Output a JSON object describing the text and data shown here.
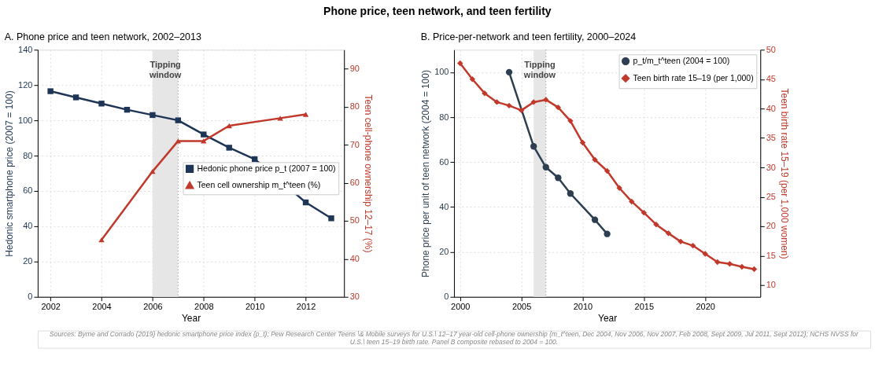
{
  "chart_data": [
    {
      "type": "other",
      "title": "Phone price, teen network, and teen fertility",
      "annotations": [
        "Sources: Byrne and Corrado (2019) hedonic smartphone price index (p_t); Pew Research Center Teens \\& Mobile surveys for U.S.\\ 12–17 year-old cell-phone ownership (m_t^teen, Dec 2004, Nov 2006, Nov 2007, Feb 2008, Sept 2009, Jul 2011, Sept 2012); NCHS NVSS for\nU.S.\\ teen 15–19 birth rate.  Panel B composite rebased to 2004 = 100."
      ]
    },
    {
      "type": "line",
      "title": "A. Phone price and teen network, 2002–2013",
      "xlabel": "Year",
      "ylabel": "Hedonic smartphone price (2007 = 100)",
      "y2label": "Teen cell-phone ownership 12–17 (%)",
      "xlim": [
        2001.5,
        2013.5
      ],
      "xticks": [
        2002,
        2004,
        2006,
        2008,
        2010,
        2012
      ],
      "ylim": [
        0,
        140
      ],
      "yticks": [
        0,
        20,
        40,
        60,
        80,
        100,
        120,
        140
      ],
      "y2lim": [
        30,
        95
      ],
      "y2ticks": [
        30,
        40,
        50,
        60,
        70,
        80,
        90
      ],
      "grid": true,
      "legend": "right",
      "line_style": "solid",
      "bands": [
        {
          "axis": "x",
          "from": 2006,
          "to": 2007,
          "label": "Tipping\nwindow",
          "color": "#e6e6e6"
        }
      ],
      "ref_lines": [
        {
          "axis": "x",
          "value": 2007,
          "color": "#888888",
          "line_style": "dotted"
        }
      ],
      "series": [
        {
          "name": "Hedonic phone price p_t (2007 = 100)",
          "color": "#1f3556",
          "marker": "square",
          "x": [
            2002,
            2003,
            2004,
            2005,
            2006,
            2007,
            2008,
            2009,
            2010,
            2012,
            2013
          ],
          "values": [
            116.5,
            113,
            109.5,
            106,
            103,
            100,
            92,
            84.5,
            78,
            53.5,
            44.5
          ]
        },
        {
          "name": "Teen cell ownership m_t^teen (%)",
          "color": "#c0392b",
          "marker": "triangle",
          "axis": "y2",
          "x": [
            2004,
            2006,
            2007,
            2008,
            2009,
            2011,
            2012
          ],
          "values": [
            45,
            63,
            71,
            71,
            75,
            77,
            78
          ]
        }
      ]
    },
    {
      "type": "line",
      "title": "B. Price-per-network and teen fertility, 2000–2024",
      "xlabel": "Year",
      "ylabel": "Phone price per unit of teen network (2004 = 100)",
      "y2label": "Teen birth rate 15–19 (per 1,000 women)",
      "xlim": [
        1999.5,
        2024.5
      ],
      "xticks": [
        2000,
        2005,
        2010,
        2015,
        2020
      ],
      "ylim": [
        0,
        110
      ],
      "yticks": [
        0,
        20,
        40,
        60,
        80,
        100
      ],
      "y2lim": [
        8,
        50
      ],
      "y2ticks": [
        10,
        15,
        20,
        25,
        30,
        35,
        40,
        45,
        50
      ],
      "grid": true,
      "legend": "top right",
      "line_style": "solid",
      "bands": [
        {
          "axis": "x",
          "from": 2006,
          "to": 2007,
          "label": "Tipping\nwindow",
          "color": "#e6e6e6"
        }
      ],
      "ref_lines": [
        {
          "axis": "x",
          "value": 2007,
          "color": "#888888",
          "line_style": "dotted"
        }
      ],
      "series": [
        {
          "name": "p_t/m_t^teen  (2004 = 100)",
          "color": "#2c3e50",
          "marker": "circle",
          "x": [
            2004,
            2006,
            2007,
            2008,
            2009,
            2011,
            2012
          ],
          "values": [
            100,
            67,
            57.7,
            53,
            46,
            34.3,
            28
          ]
        },
        {
          "name": "Teen birth rate 15–19 (per 1,000)",
          "color": "#c0392b",
          "marker": "diamond",
          "axis": "y2",
          "x": [
            2000,
            2001,
            2002,
            2003,
            2004,
            2005,
            2006,
            2007,
            2008,
            2009,
            2010,
            2011,
            2012,
            2013,
            2014,
            2015,
            2016,
            2017,
            2018,
            2019,
            2020,
            2021,
            2022,
            2023,
            2024
          ],
          "values": [
            47.7,
            45.0,
            42.6,
            41.1,
            40.5,
            39.7,
            41.1,
            41.5,
            40.2,
            37.9,
            34.2,
            31.3,
            29.4,
            26.5,
            24.2,
            22.3,
            20.3,
            18.8,
            17.4,
            16.7,
            15.3,
            13.9,
            13.6,
            13.1,
            12.7
          ]
        }
      ]
    }
  ]
}
